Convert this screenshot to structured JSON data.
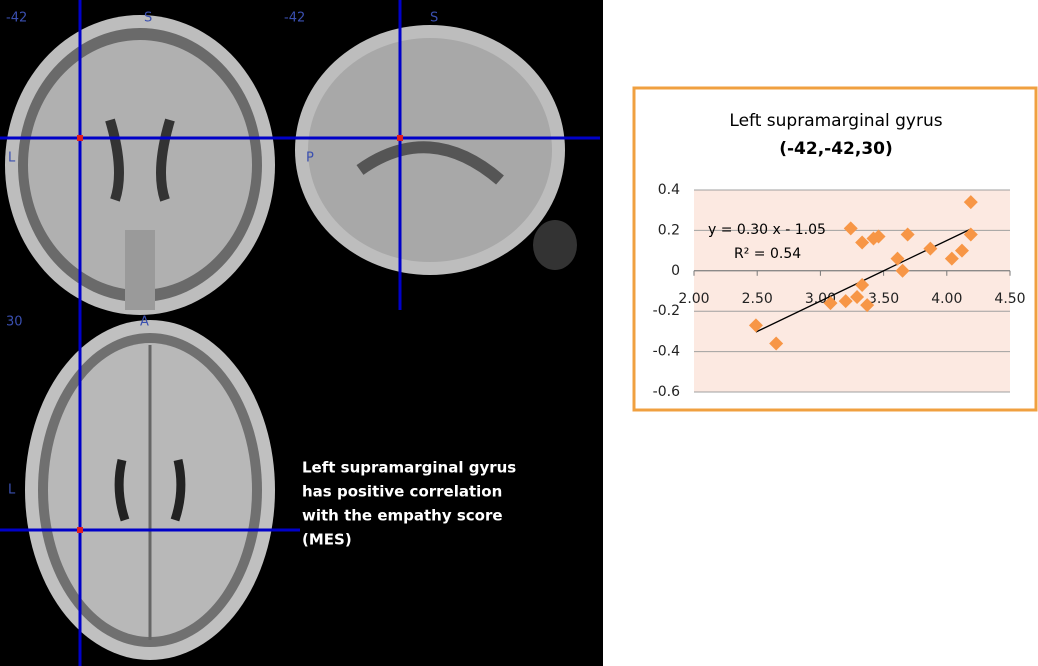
{
  "panels": {
    "coronal": {
      "top_left": "-42",
      "top": "S",
      "left": "L"
    },
    "sagittal": {
      "top_left": "-42",
      "top": "S",
      "left": "P"
    },
    "axial": {
      "top_left": "30",
      "top": "A",
      "left": "L"
    }
  },
  "caption": [
    "Left supramarginal gyrus",
    "has positive correlation",
    "with the empathy score",
    "(MES)"
  ],
  "chart_data": {
    "type": "scatter",
    "title": [
      "Left supramarginal gyrus",
      "(-42,-42,30)"
    ],
    "x": [
      2.49,
      2.65,
      3.08,
      3.2,
      3.24,
      3.29,
      3.33,
      3.33,
      3.37,
      3.42,
      3.46,
      3.69,
      3.61,
      3.65,
      3.87,
      4.04,
      4.12,
      4.19,
      4.19
    ],
    "values": [
      -0.27,
      -0.36,
      -0.16,
      -0.15,
      0.21,
      -0.13,
      -0.07,
      0.14,
      -0.17,
      0.16,
      0.17,
      0.18,
      0.06,
      0.0,
      0.11,
      0.06,
      0.1,
      0.34,
      0.18
    ],
    "color": "#f79646",
    "trendline": {
      "slope": 0.3,
      "intercept": -1.05,
      "equation": "y = 0.30 x - 1.05",
      "r_squared": "R² = 0.54"
    },
    "xlim": [
      2,
      4.5
    ],
    "xticks": [
      {
        "value": 2,
        "label": "2.00"
      },
      {
        "value": 2.5,
        "label": "2.50"
      },
      {
        "value": 3,
        "label": "3.00"
      },
      {
        "value": 3.5,
        "label": "3.50"
      },
      {
        "value": 4,
        "label": "4.00"
      },
      {
        "value": 4.5,
        "label": "4.50"
      }
    ],
    "ylim": [
      -0.6,
      0.4
    ],
    "yticks": [
      0.4,
      0.2,
      0,
      -0.2,
      -0.4,
      -0.6
    ],
    "grid": true
  }
}
